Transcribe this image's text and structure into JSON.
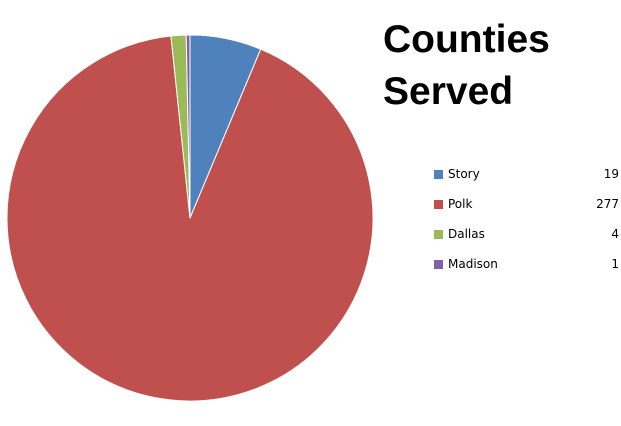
{
  "chart_data": {
    "type": "pie",
    "title": "Counties Served",
    "title_lines": [
      "Counties",
      "Served"
    ],
    "legend_position": "right",
    "slices": [
      {
        "label": "Story",
        "value": 19,
        "value_text": "19",
        "color": "#4f81bd"
      },
      {
        "label": "Polk",
        "value": 277,
        "value_text": "277",
        "color": "#c0504d"
      },
      {
        "label": "Dallas",
        "value": 4,
        "value_text": "4",
        "color": "#9bbb59"
      },
      {
        "label": "Madison",
        "value": 1,
        "value_text": "1",
        "color": "#8064a2"
      }
    ]
  }
}
